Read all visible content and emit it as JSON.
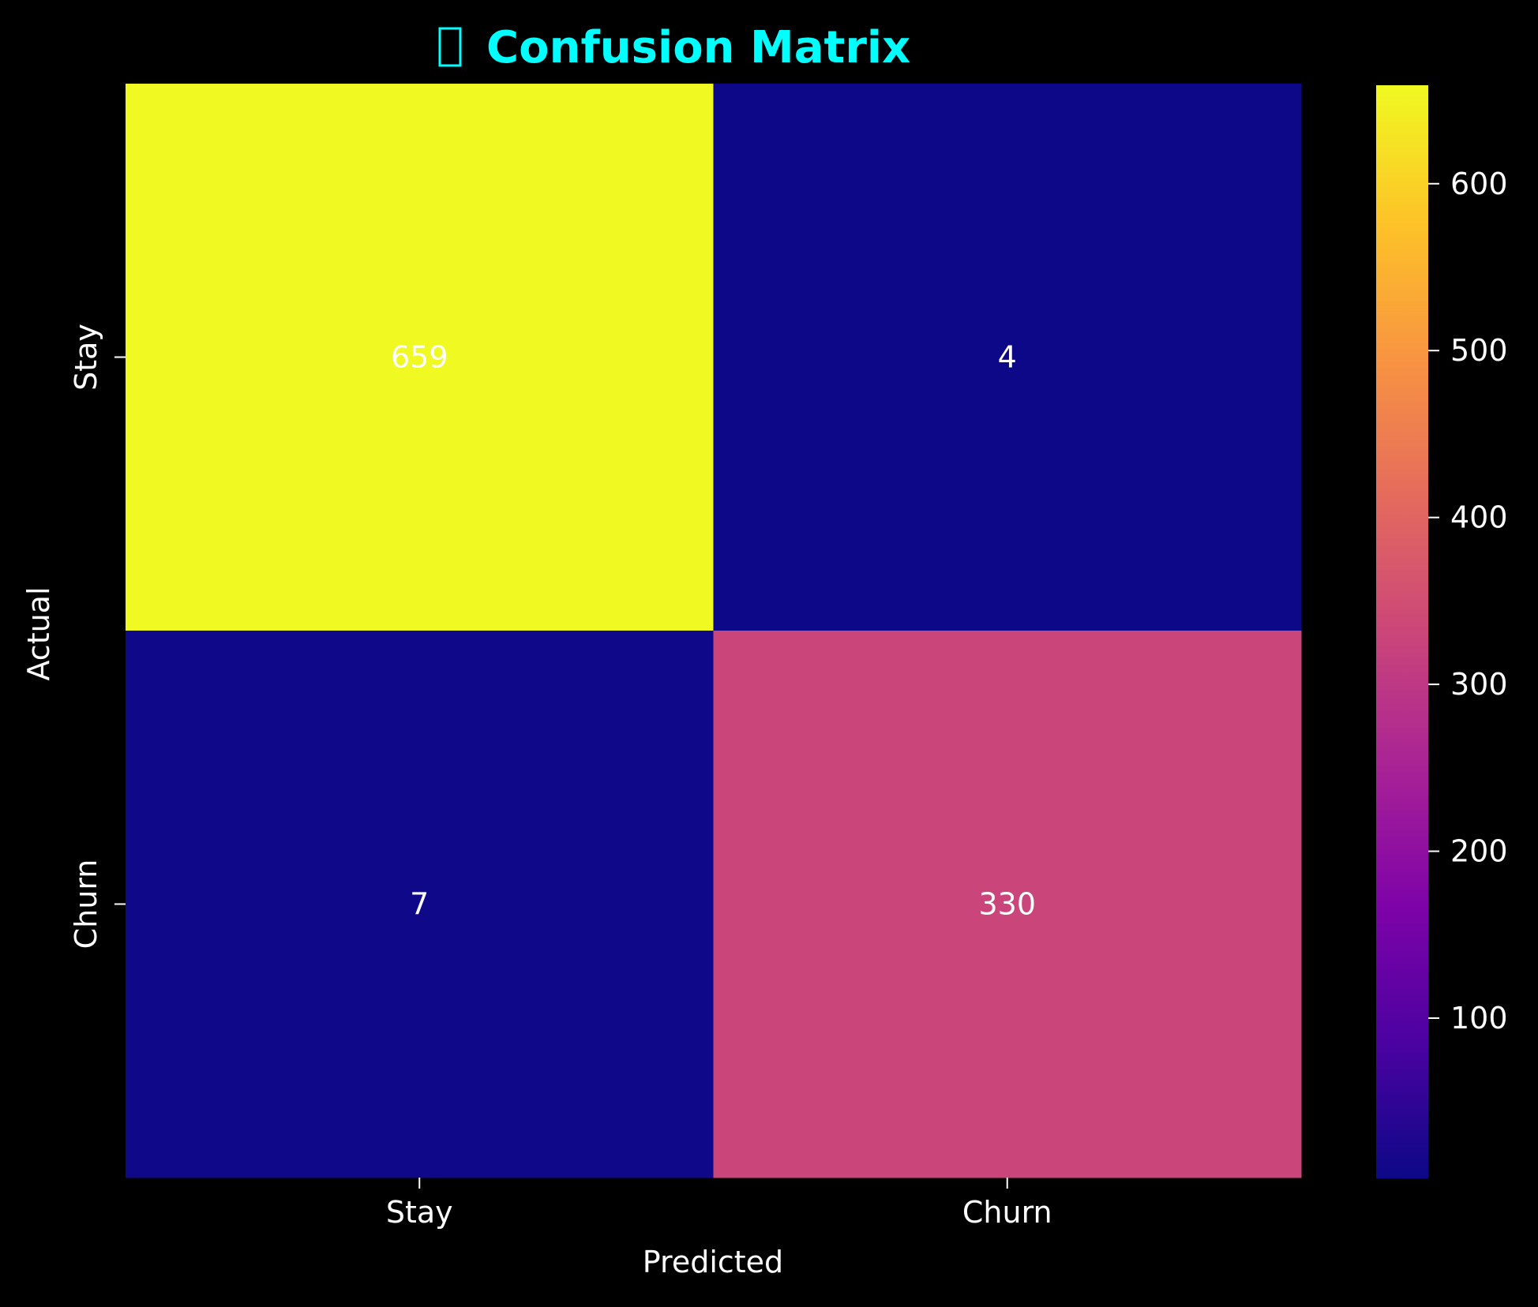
{
  "chart_data": {
    "type": "heatmap",
    "title": "Confusion Matrix",
    "title_icon": "glyph-icon",
    "xlabel": "Predicted",
    "ylabel": "Actual",
    "x_categories": [
      "Stay",
      "Churn"
    ],
    "y_categories": [
      "Stay",
      "Churn"
    ],
    "values": [
      [
        659,
        4
      ],
      [
        7,
        330
      ]
    ],
    "colormap": "plasma",
    "colorbar": {
      "min": 4,
      "max": 659,
      "ticks": [
        100,
        200,
        300,
        400,
        500,
        600
      ]
    },
    "grid": false,
    "legend": "none"
  },
  "colors": {
    "background": "#000000",
    "title": "#00ffff",
    "text": "#ffffff",
    "cell_text": "#ffffff"
  }
}
